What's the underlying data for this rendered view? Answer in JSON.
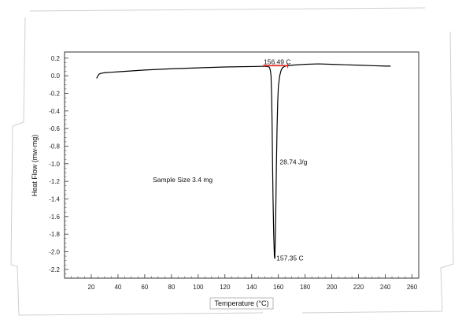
{
  "chart_data": {
    "type": "line",
    "xlabel": "Temperature (°C)",
    "ylabel": "Heat Flow (mw-mg)",
    "xlim": [
      0,
      265
    ],
    "ylim": [
      -2.3,
      0.27
    ],
    "x_ticks": [
      20,
      40,
      60,
      80,
      100,
      120,
      140,
      160,
      180,
      200,
      220,
      240,
      260
    ],
    "y_ticks": [
      0.2,
      0.0,
      -0.2,
      -0.4,
      -0.6,
      -0.8,
      -1.0,
      -1.2,
      -1.4,
      -1.6,
      -1.8,
      -2.0,
      -2.2
    ],
    "x_tick_labels": [
      "20",
      "40",
      "60",
      "80",
      "100",
      "120",
      "140",
      "160",
      "180",
      "200",
      "220",
      "240",
      "260"
    ],
    "y_tick_labels": [
      "0.2",
      "0.0",
      "-0.2",
      "-0.4",
      "-0.6",
      "-0.8",
      "-1.0",
      "-1.2",
      "-1.4",
      "-1.6",
      "-1.8",
      "-2.0",
      "-2.2"
    ],
    "grid": false,
    "series": [
      {
        "x": [
          24,
          25,
          26,
          28,
          30,
          35,
          40,
          50,
          60,
          80,
          100,
          120,
          140,
          148,
          150,
          151,
          152,
          153,
          153.5,
          154,
          154.5,
          155,
          155.3,
          155.6,
          156,
          156.5,
          157,
          157.35,
          158,
          158.5,
          159,
          159.5,
          160,
          161,
          162,
          163,
          165,
          170,
          180,
          190,
          200,
          210,
          220,
          230,
          240,
          244
        ],
        "y": [
          -0.03,
          0.0,
          0.02,
          0.03,
          0.035,
          0.04,
          0.045,
          0.055,
          0.065,
          0.08,
          0.09,
          0.1,
          0.105,
          0.107,
          0.107,
          0.106,
          0.105,
          0.1,
          0.09,
          0.06,
          0.0,
          -0.25,
          -0.55,
          -0.95,
          -1.4,
          -1.8,
          -2.05,
          -2.08,
          -1.6,
          -1.05,
          -0.6,
          -0.3,
          -0.12,
          0.0,
          0.06,
          0.09,
          0.11,
          0.12,
          0.13,
          0.135,
          0.13,
          0.125,
          0.12,
          0.115,
          0.11,
          0.11
        ],
        "color": "#000000"
      }
    ],
    "onset_line": {
      "x": [
        148.5,
        167
      ],
      "y": [
        0.115,
        0.115
      ],
      "color": "#e02020"
    },
    "annotations": [
      {
        "text": "156.49 C",
        "x": 149,
        "y": 0.16
      },
      {
        "text": "28.74 J/g",
        "x": 161,
        "y": -0.98
      },
      {
        "text": "157.35 C",
        "x": 158.5,
        "y": -2.07
      },
      {
        "text": "Sample Size 3.4 mg",
        "x": 66,
        "y": -1.18
      }
    ]
  }
}
